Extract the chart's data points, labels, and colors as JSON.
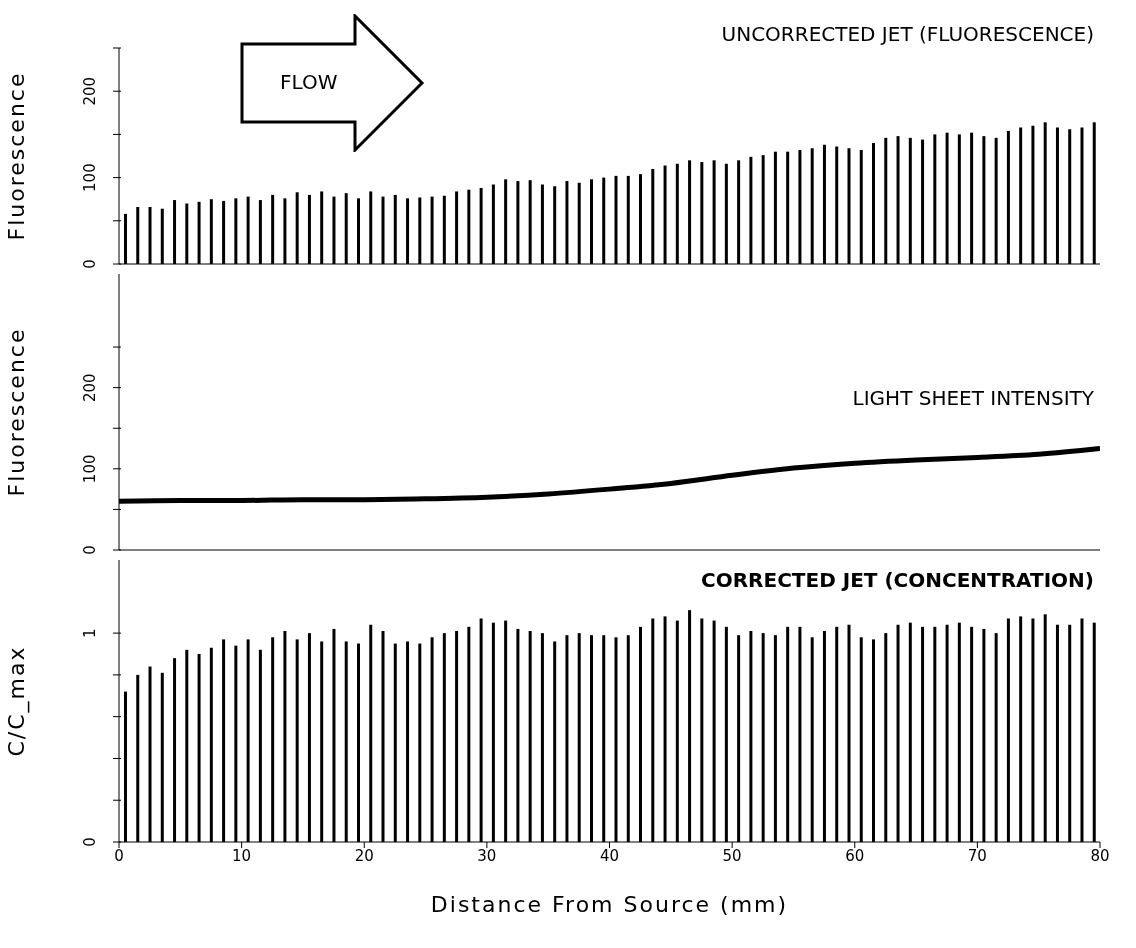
{
  "chart_data": [
    {
      "type": "bar",
      "title": "UNCORRECTED JET (FLUORESCENCE)",
      "ylabel": "Fluorescence",
      "annotations": [
        "FLOW"
      ],
      "tick_labels": "y",
      "color": "#000000",
      "x": [
        0.5,
        1.5,
        2.5,
        3.5,
        4.5,
        5.5,
        6.5,
        7.5,
        8.5,
        9.5,
        10.5,
        11.5,
        12.5,
        13.5,
        14.5,
        15.5,
        16.5,
        17.5,
        18.5,
        19.5,
        20.5,
        21.5,
        22.5,
        23.5,
        24.5,
        25.5,
        26.5,
        27.5,
        28.5,
        29.5,
        30.5,
        31.5,
        32.5,
        33.5,
        34.5,
        35.5,
        36.5,
        37.5,
        38.5,
        39.5,
        40.5,
        41.5,
        42.5,
        43.5,
        44.5,
        45.5,
        46.5,
        47.5,
        48.5,
        49.5,
        50.5,
        51.5,
        52.5,
        53.5,
        54.5,
        55.5,
        56.5,
        57.5,
        58.5,
        59.5,
        60.5,
        61.5,
        62.5,
        63.5,
        64.5,
        65.5,
        66.5,
        67.5,
        68.5,
        69.5,
        70.5,
        71.5,
        72.5,
        73.5,
        74.5,
        75.5,
        76.5,
        77.5,
        78.5,
        79.5
      ],
      "values": [
        58,
        66,
        66,
        64,
        74,
        70,
        72,
        75,
        73,
        76,
        78,
        74,
        80,
        76,
        83,
        80,
        84,
        78,
        82,
        76,
        84,
        78,
        80,
        76,
        77,
        78,
        79,
        84,
        86,
        88,
        92,
        98,
        96,
        97,
        92,
        90,
        96,
        94,
        98,
        100,
        102,
        102,
        104,
        110,
        114,
        116,
        120,
        118,
        120,
        116,
        120,
        124,
        126,
        130,
        130,
        132,
        134,
        138,
        136,
        134,
        132,
        140,
        146,
        148,
        146,
        144,
        150,
        152,
        150,
        152,
        148,
        146,
        154,
        158,
        160,
        164,
        158,
        156,
        158,
        164
      ],
      "xlim": [
        0,
        80
      ],
      "ylim": [
        0,
        250
      ],
      "yticks": [
        0,
        {
          "value": 50,
          "label": null
        },
        100,
        {
          "value": 150,
          "label": null
        },
        200,
        {
          "value": 250,
          "label": null
        }
      ]
    },
    {
      "type": "line",
      "title": "LIGHT SHEET INTENSITY",
      "ylabel": "Fluorescence",
      "tick_labels": "y",
      "color": "#000000",
      "x": [
        0,
        5,
        10,
        15,
        20,
        25,
        30,
        35,
        40,
        45,
        50,
        55,
        60,
        65,
        70,
        75,
        80
      ],
      "values": [
        60,
        61,
        61,
        62,
        62,
        63,
        65,
        69,
        75,
        82,
        92,
        101,
        107,
        111,
        114,
        118,
        125
      ],
      "xlim": [
        0,
        80
      ],
      "ylim": [
        0,
        340
      ],
      "yticks": [
        0,
        {
          "value": 50,
          "label": null
        },
        100,
        {
          "value": 150,
          "label": null
        },
        200,
        {
          "value": 250,
          "label": null
        }
      ]
    },
    {
      "type": "bar",
      "title": "CORRECTED JET (CONCENTRATION)",
      "ylabel": "C/C_max",
      "xlabel": "Distance From Source (mm)",
      "color": "#000000",
      "x": [
        0.5,
        1.5,
        2.5,
        3.5,
        4.5,
        5.5,
        6.5,
        7.5,
        8.5,
        9.5,
        10.5,
        11.5,
        12.5,
        13.5,
        14.5,
        15.5,
        16.5,
        17.5,
        18.5,
        19.5,
        20.5,
        21.5,
        22.5,
        23.5,
        24.5,
        25.5,
        26.5,
        27.5,
        28.5,
        29.5,
        30.5,
        31.5,
        32.5,
        33.5,
        34.5,
        35.5,
        36.5,
        37.5,
        38.5,
        39.5,
        40.5,
        41.5,
        42.5,
        43.5,
        44.5,
        45.5,
        46.5,
        47.5,
        48.5,
        49.5,
        50.5,
        51.5,
        52.5,
        53.5,
        54.5,
        55.5,
        56.5,
        57.5,
        58.5,
        59.5,
        60.5,
        61.5,
        62.5,
        63.5,
        64.5,
        65.5,
        66.5,
        67.5,
        68.5,
        69.5,
        70.5,
        71.5,
        72.5,
        73.5,
        74.5,
        75.5,
        76.5,
        77.5,
        78.5,
        79.5
      ],
      "values": [
        0.72,
        0.8,
        0.84,
        0.81,
        0.88,
        0.92,
        0.9,
        0.93,
        0.97,
        0.94,
        0.97,
        0.92,
        0.98,
        1.01,
        0.97,
        1.0,
        0.96,
        1.02,
        0.96,
        0.95,
        1.04,
        1.01,
        0.95,
        0.96,
        0.95,
        0.98,
        1.0,
        1.01,
        1.03,
        1.07,
        1.05,
        1.06,
        1.02,
        1.01,
        1.0,
        0.96,
        0.99,
        1.0,
        0.99,
        0.99,
        0.98,
        0.99,
        1.03,
        1.07,
        1.08,
        1.06,
        1.11,
        1.07,
        1.06,
        1.03,
        0.99,
        1.01,
        1.0,
        0.99,
        1.03,
        1.03,
        0.98,
        1.01,
        1.03,
        1.04,
        0.98,
        0.97,
        1.0,
        1.04,
        1.05,
        1.03,
        1.03,
        1.04,
        1.05,
        1.03,
        1.02,
        1.0,
        1.07,
        1.08,
        1.07,
        1.09,
        1.04,
        1.04,
        1.07,
        1.05
      ],
      "xlim": [
        0,
        80
      ],
      "xticks": [
        0,
        10,
        20,
        30,
        40,
        50,
        60,
        70,
        80
      ],
      "ylim": [
        0,
        1.35
      ],
      "yticks": [
        0,
        {
          "value": 0.2,
          "label": null
        },
        {
          "value": 0.4,
          "label": null
        },
        {
          "value": 0.6,
          "label": null
        },
        {
          "value": 0.8,
          "label": null
        },
        1
      ]
    }
  ]
}
